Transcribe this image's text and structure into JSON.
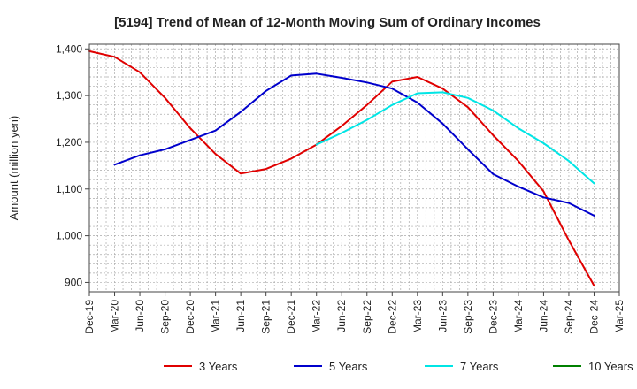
{
  "chart_data": {
    "type": "line",
    "title": "[5194]  Trend of Mean of 12-Month Moving Sum of Ordinary Incomes",
    "ylabel": "Amount (million yen)",
    "xlabel": "",
    "ylim": [
      880,
      1410
    ],
    "y_ticks": [
      900,
      1000,
      1100,
      1200,
      1300,
      1400
    ],
    "y_tick_labels": [
      "900",
      "1,000",
      "1,100",
      "1,200",
      "1,300",
      "1,400"
    ],
    "x_tick_labels": [
      "Dec-19",
      "Mar-20",
      "Jun-20",
      "Sep-20",
      "Dec-20",
      "Mar-21",
      "Jun-21",
      "Sep-21",
      "Dec-21",
      "Mar-22",
      "Jun-22",
      "Sep-22",
      "Dec-22",
      "Mar-23",
      "Jun-23",
      "Sep-23",
      "Dec-23",
      "Mar-24",
      "Jun-24",
      "Sep-24",
      "Dec-24",
      "Mar-25"
    ],
    "grid": true,
    "legend_position": "bottom",
    "series": [
      {
        "name": "3 Years",
        "color": "#e00000",
        "points": [
          [
            0,
            1395
          ],
          [
            1,
            1383
          ],
          [
            2,
            1350
          ],
          [
            3,
            1295
          ],
          [
            4,
            1230
          ],
          [
            5,
            1175
          ],
          [
            6,
            1133
          ],
          [
            7,
            1143
          ],
          [
            8,
            1165
          ],
          [
            9,
            1195
          ],
          [
            10,
            1235
          ],
          [
            11,
            1280
          ],
          [
            12,
            1330
          ],
          [
            13,
            1340
          ],
          [
            14,
            1315
          ],
          [
            15,
            1275
          ],
          [
            16,
            1215
          ],
          [
            17,
            1160
          ],
          [
            18,
            1095
          ],
          [
            19,
            990
          ],
          [
            20,
            893
          ]
        ]
      },
      {
        "name": "5 Years",
        "color": "#0000cc",
        "points": [
          [
            1,
            1152
          ],
          [
            2,
            1172
          ],
          [
            3,
            1185
          ],
          [
            4,
            1205
          ],
          [
            5,
            1225
          ],
          [
            6,
            1265
          ],
          [
            7,
            1310
          ],
          [
            8,
            1343
          ],
          [
            9,
            1347
          ],
          [
            10,
            1338
          ],
          [
            11,
            1328
          ],
          [
            12,
            1315
          ],
          [
            13,
            1285
          ],
          [
            14,
            1240
          ],
          [
            15,
            1185
          ],
          [
            16,
            1132
          ],
          [
            17,
            1105
          ],
          [
            18,
            1082
          ],
          [
            19,
            1070
          ],
          [
            20,
            1043
          ]
        ]
      },
      {
        "name": "7 Years",
        "color": "#00e5e5",
        "points": [
          [
            9,
            1195
          ],
          [
            10,
            1220
          ],
          [
            11,
            1248
          ],
          [
            12,
            1280
          ],
          [
            13,
            1305
          ],
          [
            14,
            1307
          ],
          [
            15,
            1295
          ],
          [
            16,
            1268
          ],
          [
            17,
            1230
          ],
          [
            18,
            1198
          ],
          [
            19,
            1160
          ],
          [
            20,
            1112
          ]
        ]
      },
      {
        "name": "10 Years",
        "color": "#008000",
        "points": []
      }
    ]
  }
}
